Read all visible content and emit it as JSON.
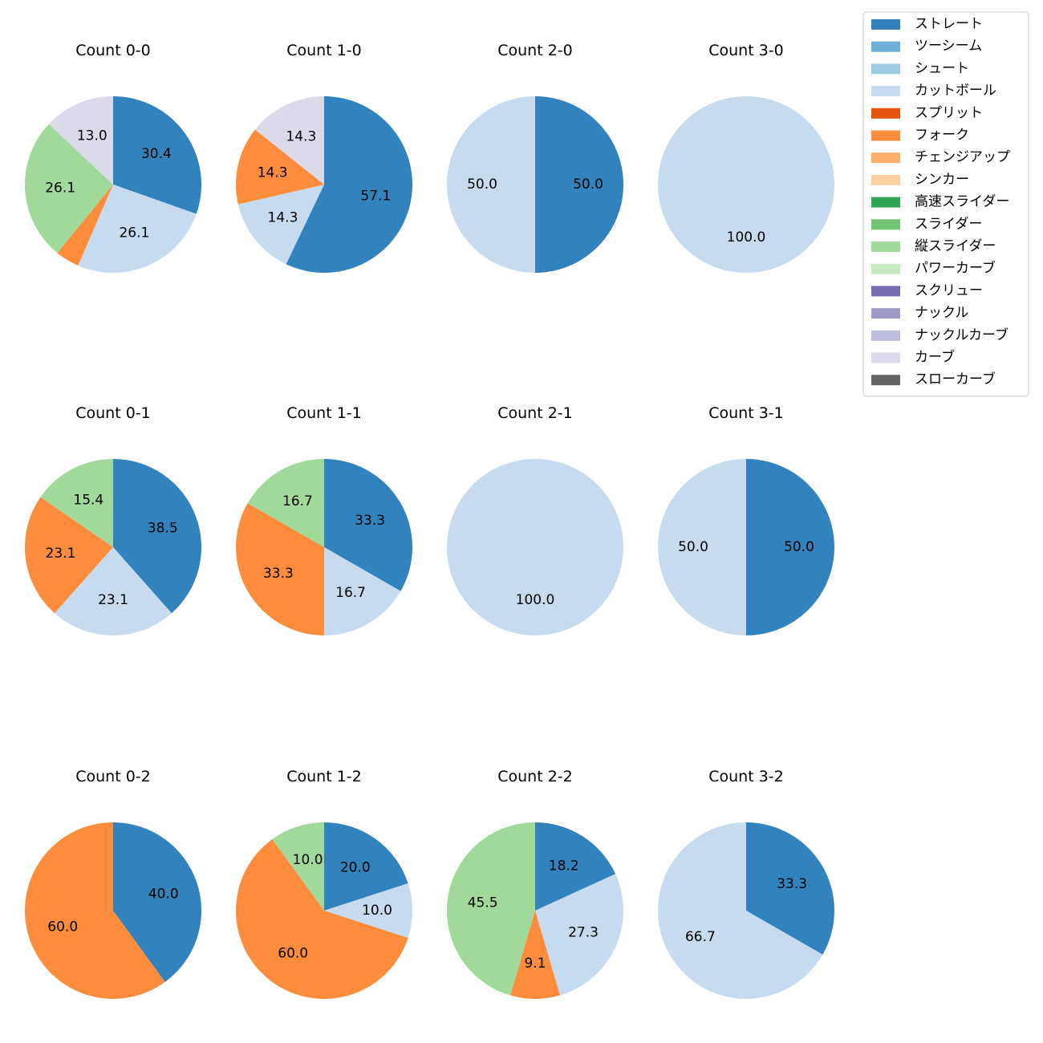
{
  "chart_data": {
    "type": "pie",
    "legend": {
      "placement": "top-right",
      "entries": [
        {
          "name": "ストレート",
          "color": "#3182bd"
        },
        {
          "name": "ツーシーム",
          "color": "#6baed6"
        },
        {
          "name": "シュート",
          "color": "#9ecae1"
        },
        {
          "name": "カットボール",
          "color": "#c6dbef"
        },
        {
          "name": "スプリット",
          "color": "#e6550d"
        },
        {
          "name": "フォーク",
          "color": "#fd8d3c"
        },
        {
          "name": "チェンジアップ",
          "color": "#fdae6b"
        },
        {
          "name": "シンカー",
          "color": "#fdd0a2"
        },
        {
          "name": "高速スライダー",
          "color": "#31a354"
        },
        {
          "name": "スライダー",
          "color": "#74c476"
        },
        {
          "name": "縦スライダー",
          "color": "#a1d99b"
        },
        {
          "name": "パワーカーブ",
          "color": "#c7e9c0"
        },
        {
          "name": "スクリュー",
          "color": "#756bb1"
        },
        {
          "name": "ナックル",
          "color": "#9e9ac8"
        },
        {
          "name": "ナックルカーブ",
          "color": "#bcbddc"
        },
        {
          "name": "カーブ",
          "color": "#dadaeb"
        },
        {
          "name": "スローカーブ",
          "color": "#636363"
        }
      ]
    },
    "pies": [
      {
        "title": "Count 0-0",
        "slices": [
          {
            "name": "ストレート",
            "value": 30.4,
            "label": "30.4"
          },
          {
            "name": "カットボール",
            "value": 26.1,
            "label": "26.1"
          },
          {
            "name": "フォーク",
            "value": 4.4,
            "label": ""
          },
          {
            "name": "縦スライダー",
            "value": 26.1,
            "label": "26.1"
          },
          {
            "name": "カーブ",
            "value": 13.0,
            "label": "13.0"
          }
        ]
      },
      {
        "title": "Count 1-0",
        "slices": [
          {
            "name": "ストレート",
            "value": 57.1,
            "label": "57.1"
          },
          {
            "name": "カットボール",
            "value": 14.3,
            "label": "14.3"
          },
          {
            "name": "フォーク",
            "value": 14.3,
            "label": "14.3"
          },
          {
            "name": "カーブ",
            "value": 14.3,
            "label": "14.3"
          }
        ]
      },
      {
        "title": "Count 2-0",
        "slices": [
          {
            "name": "ストレート",
            "value": 50.0,
            "label": "50.0"
          },
          {
            "name": "カットボール",
            "value": 50.0,
            "label": "50.0"
          }
        ]
      },
      {
        "title": "Count 3-0",
        "slices": [
          {
            "name": "カットボール",
            "value": 100.0,
            "label": "100.0"
          }
        ]
      },
      {
        "title": "Count 0-1",
        "slices": [
          {
            "name": "ストレート",
            "value": 38.5,
            "label": "38.5"
          },
          {
            "name": "カットボール",
            "value": 23.1,
            "label": "23.1"
          },
          {
            "name": "フォーク",
            "value": 23.1,
            "label": "23.1"
          },
          {
            "name": "縦スライダー",
            "value": 15.4,
            "label": "15.4"
          }
        ]
      },
      {
        "title": "Count 1-1",
        "slices": [
          {
            "name": "ストレート",
            "value": 33.3,
            "label": "33.3"
          },
          {
            "name": "カットボール",
            "value": 16.7,
            "label": "16.7"
          },
          {
            "name": "フォーク",
            "value": 33.3,
            "label": "33.3"
          },
          {
            "name": "縦スライダー",
            "value": 16.7,
            "label": "16.7"
          }
        ]
      },
      {
        "title": "Count 2-1",
        "slices": [
          {
            "name": "カットボール",
            "value": 100.0,
            "label": "100.0"
          }
        ]
      },
      {
        "title": "Count 3-1",
        "slices": [
          {
            "name": "ストレート",
            "value": 50.0,
            "label": "50.0"
          },
          {
            "name": "カットボール",
            "value": 50.0,
            "label": "50.0"
          }
        ]
      },
      {
        "title": "Count 0-2",
        "slices": [
          {
            "name": "ストレート",
            "value": 40.0,
            "label": "40.0"
          },
          {
            "name": "フォーク",
            "value": 60.0,
            "label": "60.0"
          }
        ]
      },
      {
        "title": "Count 1-2",
        "slices": [
          {
            "name": "ストレート",
            "value": 20.0,
            "label": "20.0"
          },
          {
            "name": "カットボール",
            "value": 10.0,
            "label": "10.0"
          },
          {
            "name": "フォーク",
            "value": 60.0,
            "label": "60.0"
          },
          {
            "name": "縦スライダー",
            "value": 10.0,
            "label": "10.0"
          }
        ]
      },
      {
        "title": "Count 2-2",
        "slices": [
          {
            "name": "ストレート",
            "value": 18.2,
            "label": "18.2"
          },
          {
            "name": "カットボール",
            "value": 27.3,
            "label": "27.3"
          },
          {
            "name": "フォーク",
            "value": 9.1,
            "label": "9.1"
          },
          {
            "name": "縦スライダー",
            "value": 45.5,
            "label": "45.5"
          }
        ]
      },
      {
        "title": "Count 3-2",
        "slices": [
          {
            "name": "ストレート",
            "value": 33.3,
            "label": "33.3"
          },
          {
            "name": "カットボール",
            "value": 66.7,
            "label": "66.7"
          }
        ]
      }
    ]
  }
}
